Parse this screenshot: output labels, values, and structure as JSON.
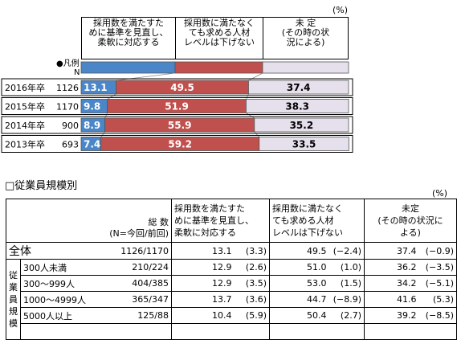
{
  "chart_data": {
    "type": "bar",
    "stacked": true,
    "percent_unit": "(%)",
    "legend_marker": "●凡例",
    "legend_n": "N",
    "headers": [
      "採用数を満たすた\nめに基準を見直し、\n柔軟に対応する",
      "採用数に満たなく\nても求める人材\nレベルは下げない",
      "未 定\n(その時の状\n況による)"
    ],
    "colors": [
      "#4a86c8",
      "#c0504d",
      "#e6e0ec"
    ],
    "rows": [
      {
        "label": "2016年卒",
        "n": "1126",
        "values": [
          13.1,
          49.5,
          37.4
        ],
        "texts": [
          "13.1",
          "49.5",
          "37.4"
        ]
      },
      {
        "label": "2015年卒",
        "n": "1170",
        "values": [
          9.8,
          51.9,
          38.3
        ],
        "texts": [
          "9.8",
          "51.9",
          "38.3"
        ]
      },
      {
        "label": "2014年卒",
        "n": "900",
        "values": [
          8.9,
          55.9,
          35.2
        ],
        "texts": [
          "8.9",
          "55.9",
          "35.2"
        ]
      },
      {
        "label": "2013年卒",
        "n": "693",
        "values": [
          7.4,
          59.2,
          33.5
        ],
        "texts": [
          "7.4",
          "59.2",
          "33.5"
        ]
      }
    ]
  },
  "section_title": "□従業員規模別",
  "table": {
    "unit": "(%)",
    "col_total_label": "総 数",
    "col_total_sub": "(N=今回/前回)",
    "col1_header": [
      "採用数を満たすた",
      "めに基準を見直し、",
      "柔軟に対応する"
    ],
    "col2_header": [
      "採用数に満たなく",
      "ても求める人材",
      "レベルは下げない"
    ],
    "col3_header": [
      "未定",
      "(その時の状況に",
      "よる)"
    ],
    "group_label": [
      "従",
      "業",
      "員",
      "規",
      "模"
    ],
    "all_row": {
      "label": "全体",
      "n": "1126/1170",
      "v1": "13.1",
      "d1": "(3.3)",
      "v2": "49.5",
      "d2": "(−2.4)",
      "v3": "37.4",
      "d3": "(−0.9)"
    },
    "rows": [
      {
        "label": "300人未満",
        "n": "210/224",
        "v1": "12.9",
        "d1": "(2.6)",
        "v2": "51.0",
        "d2": "(1.0)",
        "v3": "36.2",
        "d3": "(−3.5)"
      },
      {
        "label": "300〜999人",
        "n": "404/385",
        "v1": "12.9",
        "d1": "(3.5)",
        "v2": "53.0",
        "d2": "(1.5)",
        "v3": "34.2",
        "d3": "(−5.1)"
      },
      {
        "label": "1000〜4999人",
        "n": "365/347",
        "v1": "13.7",
        "d1": "(3.6)",
        "v2": "44.7",
        "d2": "(−8.9)",
        "v3": "41.6",
        "d3": "(5.3)"
      },
      {
        "label": "5000人以上",
        "n": "125/88",
        "v1": "10.4",
        "d1": "(5.9)",
        "v2": "50.4",
        "d2": "(2.7)",
        "v3": "39.2",
        "d3": "(−8.5)"
      }
    ]
  }
}
